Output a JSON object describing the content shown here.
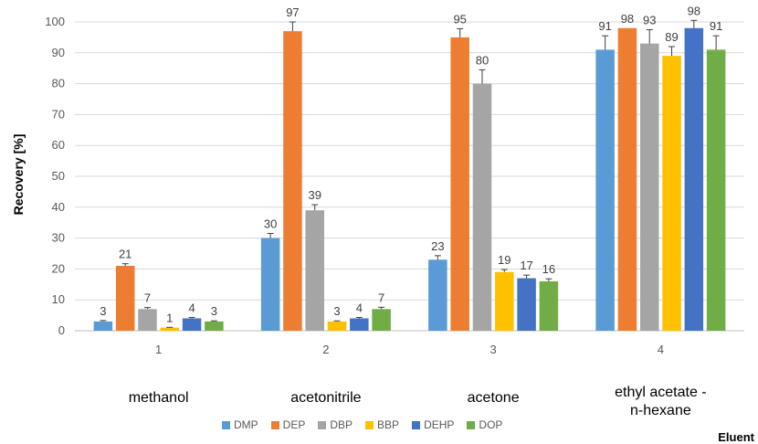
{
  "chart_data": {
    "type": "bar",
    "categories": [
      "1",
      "2",
      "3",
      "4"
    ],
    "category_names": [
      "methanol",
      "acetonitrile",
      "acetone",
      "ethyl acetate - n-hexane"
    ],
    "series": [
      {
        "name": "DMP",
        "values": [
          3,
          30,
          23,
          91
        ],
        "errors": [
          0.3,
          1.5,
          1.3,
          4.5
        ],
        "color": "#5B9BD5"
      },
      {
        "name": "DEP",
        "values": [
          21,
          97,
          95,
          98
        ],
        "errors": [
          0.7,
          3.0,
          2.8,
          0
        ],
        "color": "#ED7D31"
      },
      {
        "name": "DBP",
        "values": [
          7,
          39,
          80,
          93
        ],
        "errors": [
          0.5,
          1.8,
          4.5,
          4.5
        ],
        "color": "#A5A5A5"
      },
      {
        "name": "BBP",
        "values": [
          1,
          3,
          19,
          89
        ],
        "errors": [
          0.1,
          0.2,
          0.8,
          3.0
        ],
        "color": "#FFC000"
      },
      {
        "name": "DEHP",
        "values": [
          4,
          4,
          17,
          98
        ],
        "errors": [
          0.3,
          0.3,
          1.0,
          2.5
        ],
        "color": "#4472C4"
      },
      {
        "name": "DOP",
        "values": [
          3,
          7,
          16,
          91
        ],
        "errors": [
          0.2,
          0.6,
          0.8,
          4.5
        ],
        "color": "#70AD47"
      }
    ],
    "ylabel": "Recovery [%]",
    "xlabel": "Eluent",
    "ylim": [
      0,
      100
    ],
    "yticks": [
      0,
      10,
      20,
      30,
      40,
      50,
      60,
      70,
      80,
      90,
      100
    ],
    "grid": true,
    "legend": "bottom"
  }
}
